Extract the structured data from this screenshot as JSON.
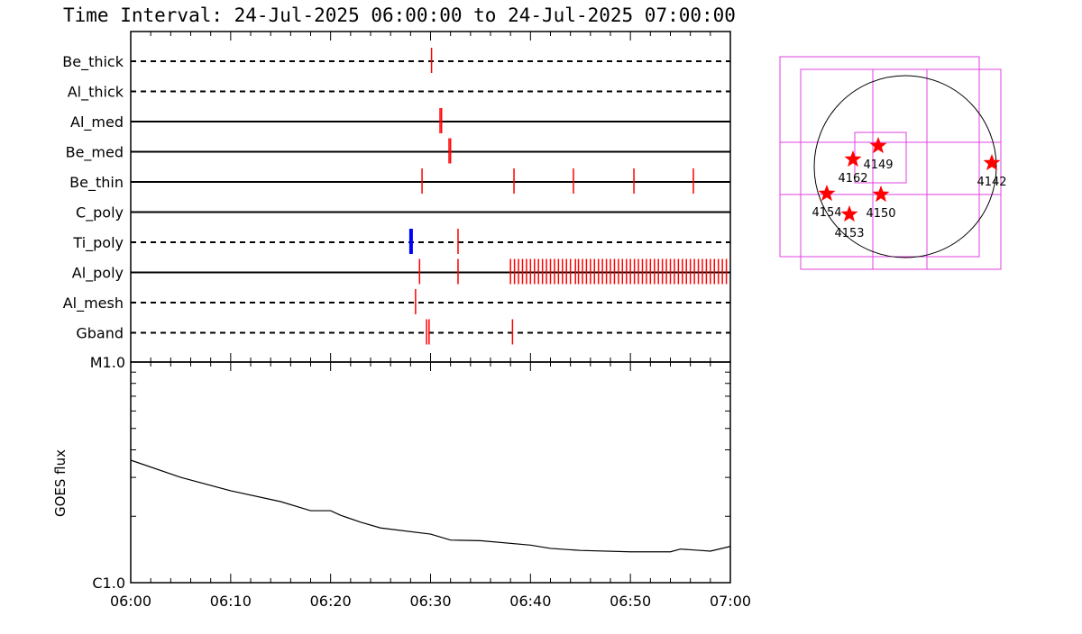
{
  "chart_data": [
    {
      "type": "timeline",
      "title": "Time Interval: 24-Jul-2025 06:00:00 to 24-Jul-2025 07:00:00",
      "xlim": [
        0,
        60
      ],
      "xticks": [
        0,
        10,
        20,
        30,
        40,
        50,
        60
      ],
      "xminorticks": [
        2,
        4,
        6,
        8,
        12,
        14,
        16,
        18,
        22,
        24,
        26,
        28,
        32,
        34,
        36,
        38,
        42,
        44,
        46,
        48,
        52,
        54,
        56,
        58
      ],
      "rows": [
        {
          "name": "Be_thick",
          "dashed": true,
          "color": "#ff0000",
          "values": [
            30.1
          ]
        },
        {
          "name": "Al_thick",
          "dashed": true,
          "color": "#ff0000",
          "values": []
        },
        {
          "name": "Al_med",
          "dashed": false,
          "color": "#ff0000",
          "values": [
            30.95,
            31.1
          ]
        },
        {
          "name": "Be_med",
          "dashed": false,
          "color": "#ff0000",
          "values": [
            31.85,
            32.0
          ]
        },
        {
          "name": "Be_thin",
          "dashed": false,
          "color": "#ff0000",
          "values": [
            29.15,
            38.35,
            44.3,
            50.35,
            56.3
          ]
        },
        {
          "name": "C_poly",
          "dashed": false,
          "color": "#ff0000",
          "values": []
        },
        {
          "name": "Ti_poly",
          "dashed": true,
          "colors": [
            "#0000ff",
            "#ff0000"
          ],
          "values": [
            28.05,
            32.75
          ]
        },
        {
          "name": "Al_poly",
          "dashed": false,
          "color": "#ff0000",
          "values": [
            28.9,
            32.75,
            38.0,
            38.4,
            38.8,
            39.2,
            39.6,
            40.0,
            40.4,
            40.8,
            41.2,
            41.6,
            42.0,
            42.4,
            42.8,
            43.2,
            43.6,
            44.0,
            44.5,
            44.8,
            45.2,
            45.6,
            46.0,
            46.4,
            46.8,
            47.2,
            47.6,
            48.0,
            48.4,
            48.8,
            49.2,
            49.6,
            50.0,
            50.4,
            50.8,
            51.2,
            51.6,
            52.0,
            52.4,
            52.8,
            53.2,
            53.6,
            54.0,
            54.4,
            54.8,
            55.2,
            55.6,
            56.0,
            56.4,
            56.8,
            57.2,
            57.6,
            58.0,
            58.4,
            58.8,
            59.2,
            59.6
          ]
        },
        {
          "name": "Al_mesh",
          "dashed": true,
          "color": "#ff0000",
          "values": [
            28.5
          ]
        },
        {
          "name": "Gband",
          "dashed": true,
          "color": "#ff0000",
          "values": [
            29.6,
            29.85,
            38.2
          ]
        }
      ]
    },
    {
      "type": "line",
      "ylabel": "GOES flux",
      "log": true,
      "color": "#000000",
      "xlim": [
        0,
        60
      ],
      "xticks": [
        {
          "value": 0,
          "label": "06:00"
        },
        {
          "value": 10,
          "label": "06:10"
        },
        {
          "value": 20,
          "label": "06:20"
        },
        {
          "value": 30,
          "label": "06:30"
        },
        {
          "value": 40,
          "label": "06:40"
        },
        {
          "value": 50,
          "label": "06:50"
        },
        {
          "value": 60,
          "label": "07:00"
        }
      ],
      "xminorticks": [
        2,
        4,
        6,
        8,
        12,
        14,
        16,
        18,
        22,
        24,
        26,
        28,
        32,
        34,
        36,
        38,
        42,
        44,
        46,
        48,
        52,
        54,
        56,
        58
      ],
      "ylim": [
        1e-06,
        1e-05
      ],
      "yticks": [
        {
          "value": 1e-06,
          "label": "C1.0"
        },
        {
          "value": 1e-05,
          "label": "M1.0"
        }
      ],
      "yminorticks": [
        2e-06,
        3e-06,
        4e-06,
        5e-06,
        6e-06,
        7e-06,
        8e-06,
        9e-06
      ],
      "x": [
        0,
        5,
        10,
        15,
        18,
        20,
        21,
        23,
        25,
        30,
        32,
        35,
        40,
        42,
        45,
        50,
        54,
        55,
        57,
        58,
        60
      ],
      "values": [
        3.59e-06,
        3e-06,
        2.61e-06,
        2.33e-06,
        2.12e-06,
        2.12e-06,
        2.02e-06,
        1.88e-06,
        1.77e-06,
        1.66e-06,
        1.56e-06,
        1.55e-06,
        1.48e-06,
        1.43e-06,
        1.4e-06,
        1.38e-06,
        1.38e-06,
        1.42e-06,
        1.4e-06,
        1.39e-06,
        1.46e-06
      ]
    }
  ],
  "map": {
    "regions": [
      "4149",
      "4162",
      "4142",
      "4154",
      "4150",
      "4153"
    ]
  }
}
